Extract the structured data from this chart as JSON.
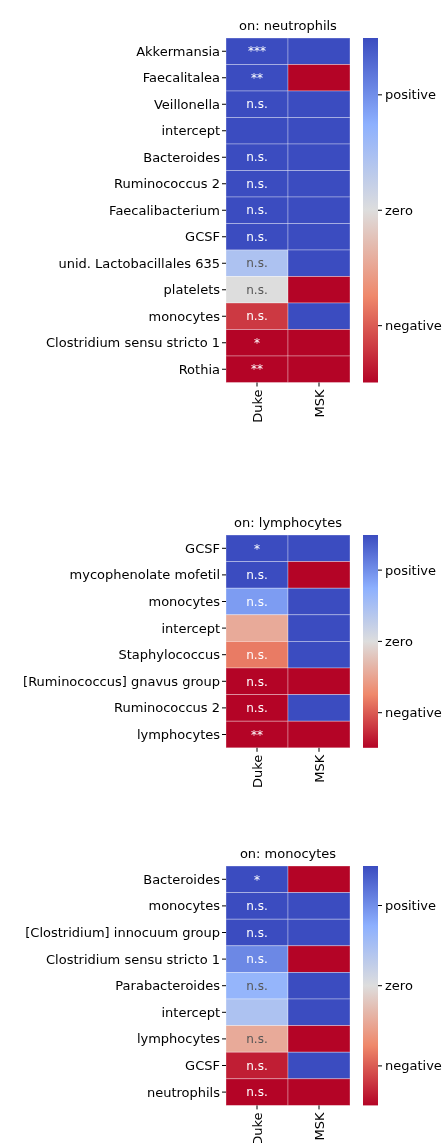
{
  "chart_data": [
    {
      "type": "heatmap",
      "title": "on: neutrophils",
      "categories": [
        "Duke",
        "MSK"
      ],
      "y_categories": [
        "Akkermansia",
        "Faecalitalea",
        "Veillonella",
        "intercept",
        "Bacteroides",
        "Ruminococcus 2",
        "Faecalibacterium",
        "GCSF",
        "unid. Lactobacillales 635",
        "platelets",
        "monocytes",
        "Clostridium sensu stricto 1",
        "Rothia"
      ],
      "cells": [
        [
          1,
          1
        ],
        [
          1,
          -1
        ],
        [
          1,
          1
        ],
        [
          1,
          1
        ],
        [
          1,
          1
        ],
        [
          1,
          1
        ],
        [
          1,
          1
        ],
        [
          1,
          1
        ],
        [
          0.3,
          1
        ],
        [
          0,
          -1
        ],
        [
          -0.8,
          1
        ],
        [
          -1,
          -1
        ],
        [
          -1,
          -1
        ]
      ],
      "cell_labels": [
        [
          "***",
          null
        ],
        [
          "**",
          null
        ],
        [
          "n.s.",
          null
        ],
        [
          null,
          null
        ],
        [
          "n.s.",
          null
        ],
        [
          "n.s.",
          null
        ],
        [
          "n.s.",
          null
        ],
        [
          "n.s.",
          null
        ],
        [
          "n.s.",
          null
        ],
        [
          "n.s.",
          null
        ],
        [
          "n.s.",
          null
        ],
        [
          "*",
          null
        ],
        [
          "**",
          null
        ]
      ],
      "clim": [
        -1,
        1
      ],
      "cticks": [
        {
          "value": 0.67,
          "label": "positive"
        },
        {
          "value": 0,
          "label": "zero"
        },
        {
          "value": -0.67,
          "label": "negative"
        }
      ]
    },
    {
      "type": "heatmap",
      "title": "on: lymphocytes",
      "categories": [
        "Duke",
        "MSK"
      ],
      "y_categories": [
        "GCSF",
        "mycophenolate mofetil",
        "monocytes",
        "intercept",
        "Staphylococcus",
        "[Ruminococcus] gnavus group",
        "Ruminococcus 2",
        "lymphocytes"
      ],
      "cells": [
        [
          1,
          1
        ],
        [
          1,
          -1
        ],
        [
          0.6,
          1
        ],
        [
          -0.3,
          1
        ],
        [
          -0.55,
          1
        ],
        [
          -1,
          -1
        ],
        [
          -1,
          1
        ],
        [
          -1,
          -1
        ]
      ],
      "cell_labels": [
        [
          "*",
          null
        ],
        [
          "n.s.",
          null
        ],
        [
          "n.s.",
          null
        ],
        [
          null,
          null
        ],
        [
          "n.s.",
          null
        ],
        [
          "n.s.",
          null
        ],
        [
          "n.s.",
          null
        ],
        [
          "**",
          null
        ]
      ],
      "clim": [
        -1,
        1
      ],
      "cticks": [
        {
          "value": 0.67,
          "label": "positive"
        },
        {
          "value": 0,
          "label": "zero"
        },
        {
          "value": -0.67,
          "label": "negative"
        }
      ]
    },
    {
      "type": "heatmap",
      "title": "on: monocytes",
      "categories": [
        "Duke",
        "MSK"
      ],
      "y_categories": [
        "Bacteroides",
        "monocytes",
        "[Clostridium] innocuum group",
        "Clostridium sensu stricto 1",
        "Parabacteroides",
        "intercept",
        "lymphocytes",
        "GCSF",
        "neutrophils"
      ],
      "cells": [
        [
          1,
          -1
        ],
        [
          1,
          1
        ],
        [
          1,
          1
        ],
        [
          0.7,
          -1
        ],
        [
          0.45,
          1
        ],
        [
          0.3,
          1
        ],
        [
          -0.3,
          -1
        ],
        [
          -0.9,
          1
        ],
        [
          -1,
          -1
        ]
      ],
      "cell_labels": [
        [
          "*",
          null
        ],
        [
          "n.s.",
          null
        ],
        [
          "n.s.",
          null
        ],
        [
          "n.s.",
          null
        ],
        [
          "n.s.",
          null
        ],
        [
          null,
          null
        ],
        [
          "n.s.",
          null
        ],
        [
          "n.s.",
          null
        ],
        [
          "n.s.",
          null
        ]
      ],
      "clim": [
        -1,
        1
      ],
      "cticks": [
        {
          "value": 0.67,
          "label": "positive"
        },
        {
          "value": 0,
          "label": "zero"
        },
        {
          "value": -0.67,
          "label": "negative"
        }
      ]
    }
  ]
}
